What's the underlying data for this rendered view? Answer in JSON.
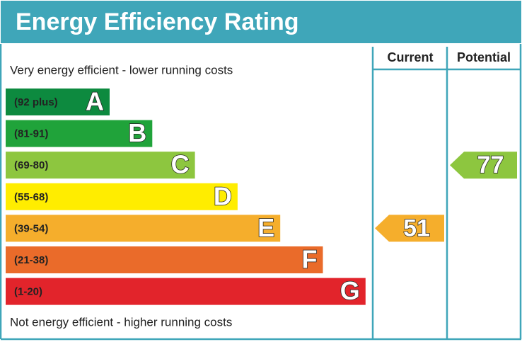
{
  "chart_data": {
    "type": "epc",
    "title": "Energy Efficiency Rating",
    "column_headers": [
      "Current",
      "Potential"
    ],
    "top_note": "Very energy efficient - lower running costs",
    "bottom_note": "Not energy efficient - higher running costs",
    "bands": [
      {
        "range": "(92 plus)",
        "letter": "A",
        "color": "#0d8a3f"
      },
      {
        "range": "(81-91)",
        "letter": "B",
        "color": "#20a33a"
      },
      {
        "range": "(69-80)",
        "letter": "C",
        "color": "#8dc63f"
      },
      {
        "range": "(55-68)",
        "letter": "D",
        "color": "#ffed00"
      },
      {
        "range": "(39-54)",
        "letter": "E",
        "color": "#f5ae2c"
      },
      {
        "range": "(21-38)",
        "letter": "F",
        "color": "#ea6b2a"
      },
      {
        "range": "(1-20)",
        "letter": "G",
        "color": "#e2242b"
      }
    ],
    "current": 51,
    "potential": 77
  }
}
